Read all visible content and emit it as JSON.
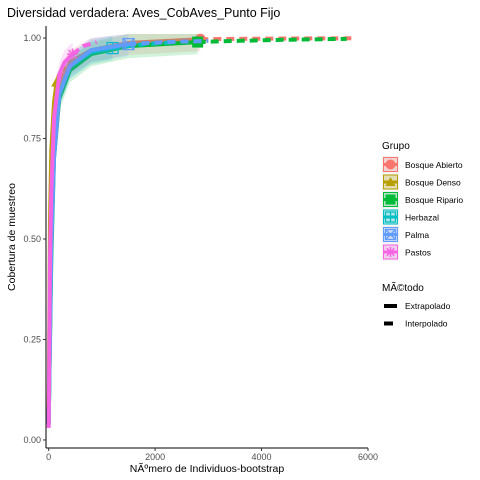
{
  "chart_data": {
    "type": "line",
    "title": "Diversidad verdadera: Aves_CobAves_Punto Fijo",
    "xlabel": "NÃºmero de Individuos-bootstrap",
    "ylabel": "Cobertura de muestreo",
    "xlim": [
      -50,
      6000
    ],
    "ylim": [
      -0.02,
      1.03
    ],
    "x_ticks": [
      0,
      2000,
      4000,
      6000
    ],
    "y_ticks": [
      0.0,
      0.25,
      0.5,
      0.75,
      1.0
    ],
    "x_tick_labels": [
      "0",
      "2000",
      "4000",
      "6000"
    ],
    "y_tick_labels": [
      "0.00",
      "0.25",
      "0.50",
      "0.75",
      "1.00"
    ],
    "grid": false,
    "legend": {
      "placement": "right",
      "group_title": "Grupo",
      "method_title": "MÃ©todo",
      "methods": [
        {
          "label": "Extrapolado",
          "style": "solid"
        },
        {
          "label": "Interpolado",
          "style": "dashed"
        }
      ]
    },
    "series": [
      {
        "name": "Bosque Abierto",
        "color": "#F8766D",
        "marker": "circle",
        "observed": {
          "x": 2850,
          "y": 0.997
        },
        "interpolated": {
          "x": [
            1,
            50,
            100,
            200,
            400,
            800,
            1500,
            2850
          ],
          "y": [
            0.05,
            0.62,
            0.8,
            0.89,
            0.94,
            0.97,
            0.988,
            0.997
          ]
        },
        "extrapolated": {
          "x": [
            2850,
            3500,
            4500,
            5700
          ],
          "y": [
            0.997,
            0.998,
            0.999,
            0.9995
          ]
        }
      },
      {
        "name": "Bosque Denso",
        "color": "#B79F00",
        "marker": "triangle",
        "observed": {
          "x": 150,
          "y": 0.89
        },
        "interpolated": {
          "x": [
            1,
            25,
            50,
            100,
            150
          ],
          "y": [
            0.05,
            0.55,
            0.72,
            0.84,
            0.89
          ]
        },
        "extrapolated": {
          "x": [
            150,
            200,
            300
          ],
          "y": [
            0.89,
            0.91,
            0.93
          ]
        }
      },
      {
        "name": "Bosque Ripario",
        "color": "#00BA38",
        "marker": "square",
        "observed": {
          "x": 2800,
          "y": 0.99
        },
        "interpolated": {
          "x": [
            1,
            50,
            100,
            200,
            400,
            800,
            1500,
            2800
          ],
          "y": [
            0.04,
            0.45,
            0.7,
            0.85,
            0.92,
            0.96,
            0.98,
            0.99
          ]
        },
        "extrapolated": {
          "x": [
            2800,
            3500,
            4500,
            5600
          ],
          "y": [
            0.99,
            0.993,
            0.996,
            0.998
          ]
        }
      },
      {
        "name": "Herbazal",
        "color": "#00BFC4",
        "marker": "square-plus",
        "observed": {
          "x": 1200,
          "y": 0.975
        },
        "interpolated": {
          "x": [
            1,
            50,
            100,
            200,
            400,
            800,
            1200
          ],
          "y": [
            0.04,
            0.5,
            0.72,
            0.86,
            0.93,
            0.965,
            0.975
          ]
        },
        "extrapolated": {
          "x": [
            1200,
            1800,
            2400
          ],
          "y": [
            0.975,
            0.985,
            0.99
          ]
        }
      },
      {
        "name": "Palma",
        "color": "#619CFF",
        "marker": "square-x",
        "observed": {
          "x": 1500,
          "y": 0.985
        },
        "interpolated": {
          "x": [
            1,
            50,
            100,
            200,
            400,
            800,
            1500
          ],
          "y": [
            0.04,
            0.48,
            0.7,
            0.86,
            0.93,
            0.97,
            0.985
          ]
        },
        "extrapolated": {
          "x": [
            1500,
            2200,
            3000
          ],
          "y": [
            0.985,
            0.99,
            0.993
          ]
        }
      },
      {
        "name": "Pastos",
        "color": "#F564E3",
        "marker": "star",
        "observed": {
          "x": 450,
          "y": 0.96
        },
        "interpolated": {
          "x": [
            1,
            25,
            50,
            100,
            200,
            300,
            450
          ],
          "y": [
            0.03,
            0.45,
            0.62,
            0.8,
            0.91,
            0.94,
            0.96
          ]
        },
        "extrapolated": {
          "x": [
            450,
            650,
            900
          ],
          "y": [
            0.96,
            0.98,
            0.99
          ]
        }
      }
    ]
  }
}
